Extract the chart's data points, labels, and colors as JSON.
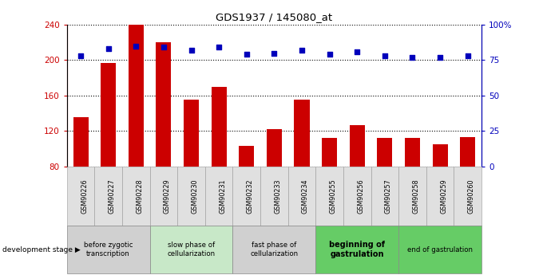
{
  "title": "GDS1937 / 145080_at",
  "samples": [
    "GSM90226",
    "GSM90227",
    "GSM90228",
    "GSM90229",
    "GSM90230",
    "GSM90231",
    "GSM90232",
    "GSM90233",
    "GSM90234",
    "GSM90255",
    "GSM90256",
    "GSM90257",
    "GSM90258",
    "GSM90259",
    "GSM90260"
  ],
  "counts": [
    136,
    197,
    240,
    220,
    155,
    170,
    103,
    122,
    155,
    112,
    127,
    112,
    112,
    105,
    113
  ],
  "percentiles": [
    78,
    83,
    85,
    84,
    82,
    84,
    79,
    80,
    82,
    79,
    81,
    78,
    77,
    77,
    78
  ],
  "ylim_left": [
    80,
    240
  ],
  "ylim_right": [
    0,
    100
  ],
  "yticks_left": [
    80,
    120,
    160,
    200,
    240
  ],
  "yticks_right": [
    0,
    25,
    50,
    75,
    100
  ],
  "ytick_labels_right": [
    "0",
    "25",
    "50",
    "75",
    "100%"
  ],
  "bar_color": "#cc0000",
  "dot_color": "#0000bb",
  "grid_color": "#000000",
  "stage_groups": [
    {
      "label": "before zygotic\ntranscription",
      "indices": [
        0,
        1,
        2
      ],
      "color": "#d0d0d0",
      "bold": false
    },
    {
      "label": "slow phase of\ncellularization",
      "indices": [
        3,
        4,
        5
      ],
      "color": "#c8e8c8",
      "bold": false
    },
    {
      "label": "fast phase of\ncellularization",
      "indices": [
        6,
        7,
        8
      ],
      "color": "#d0d0d0",
      "bold": false
    },
    {
      "label": "beginning of\ngastrulation",
      "indices": [
        9,
        10,
        11
      ],
      "color": "#66cc66",
      "bold": true
    },
    {
      "label": "end of gastrulation",
      "indices": [
        12,
        13,
        14
      ],
      "color": "#66cc66",
      "bold": false
    }
  ],
  "legend_count_color": "#cc0000",
  "legend_pct_color": "#0000bb"
}
